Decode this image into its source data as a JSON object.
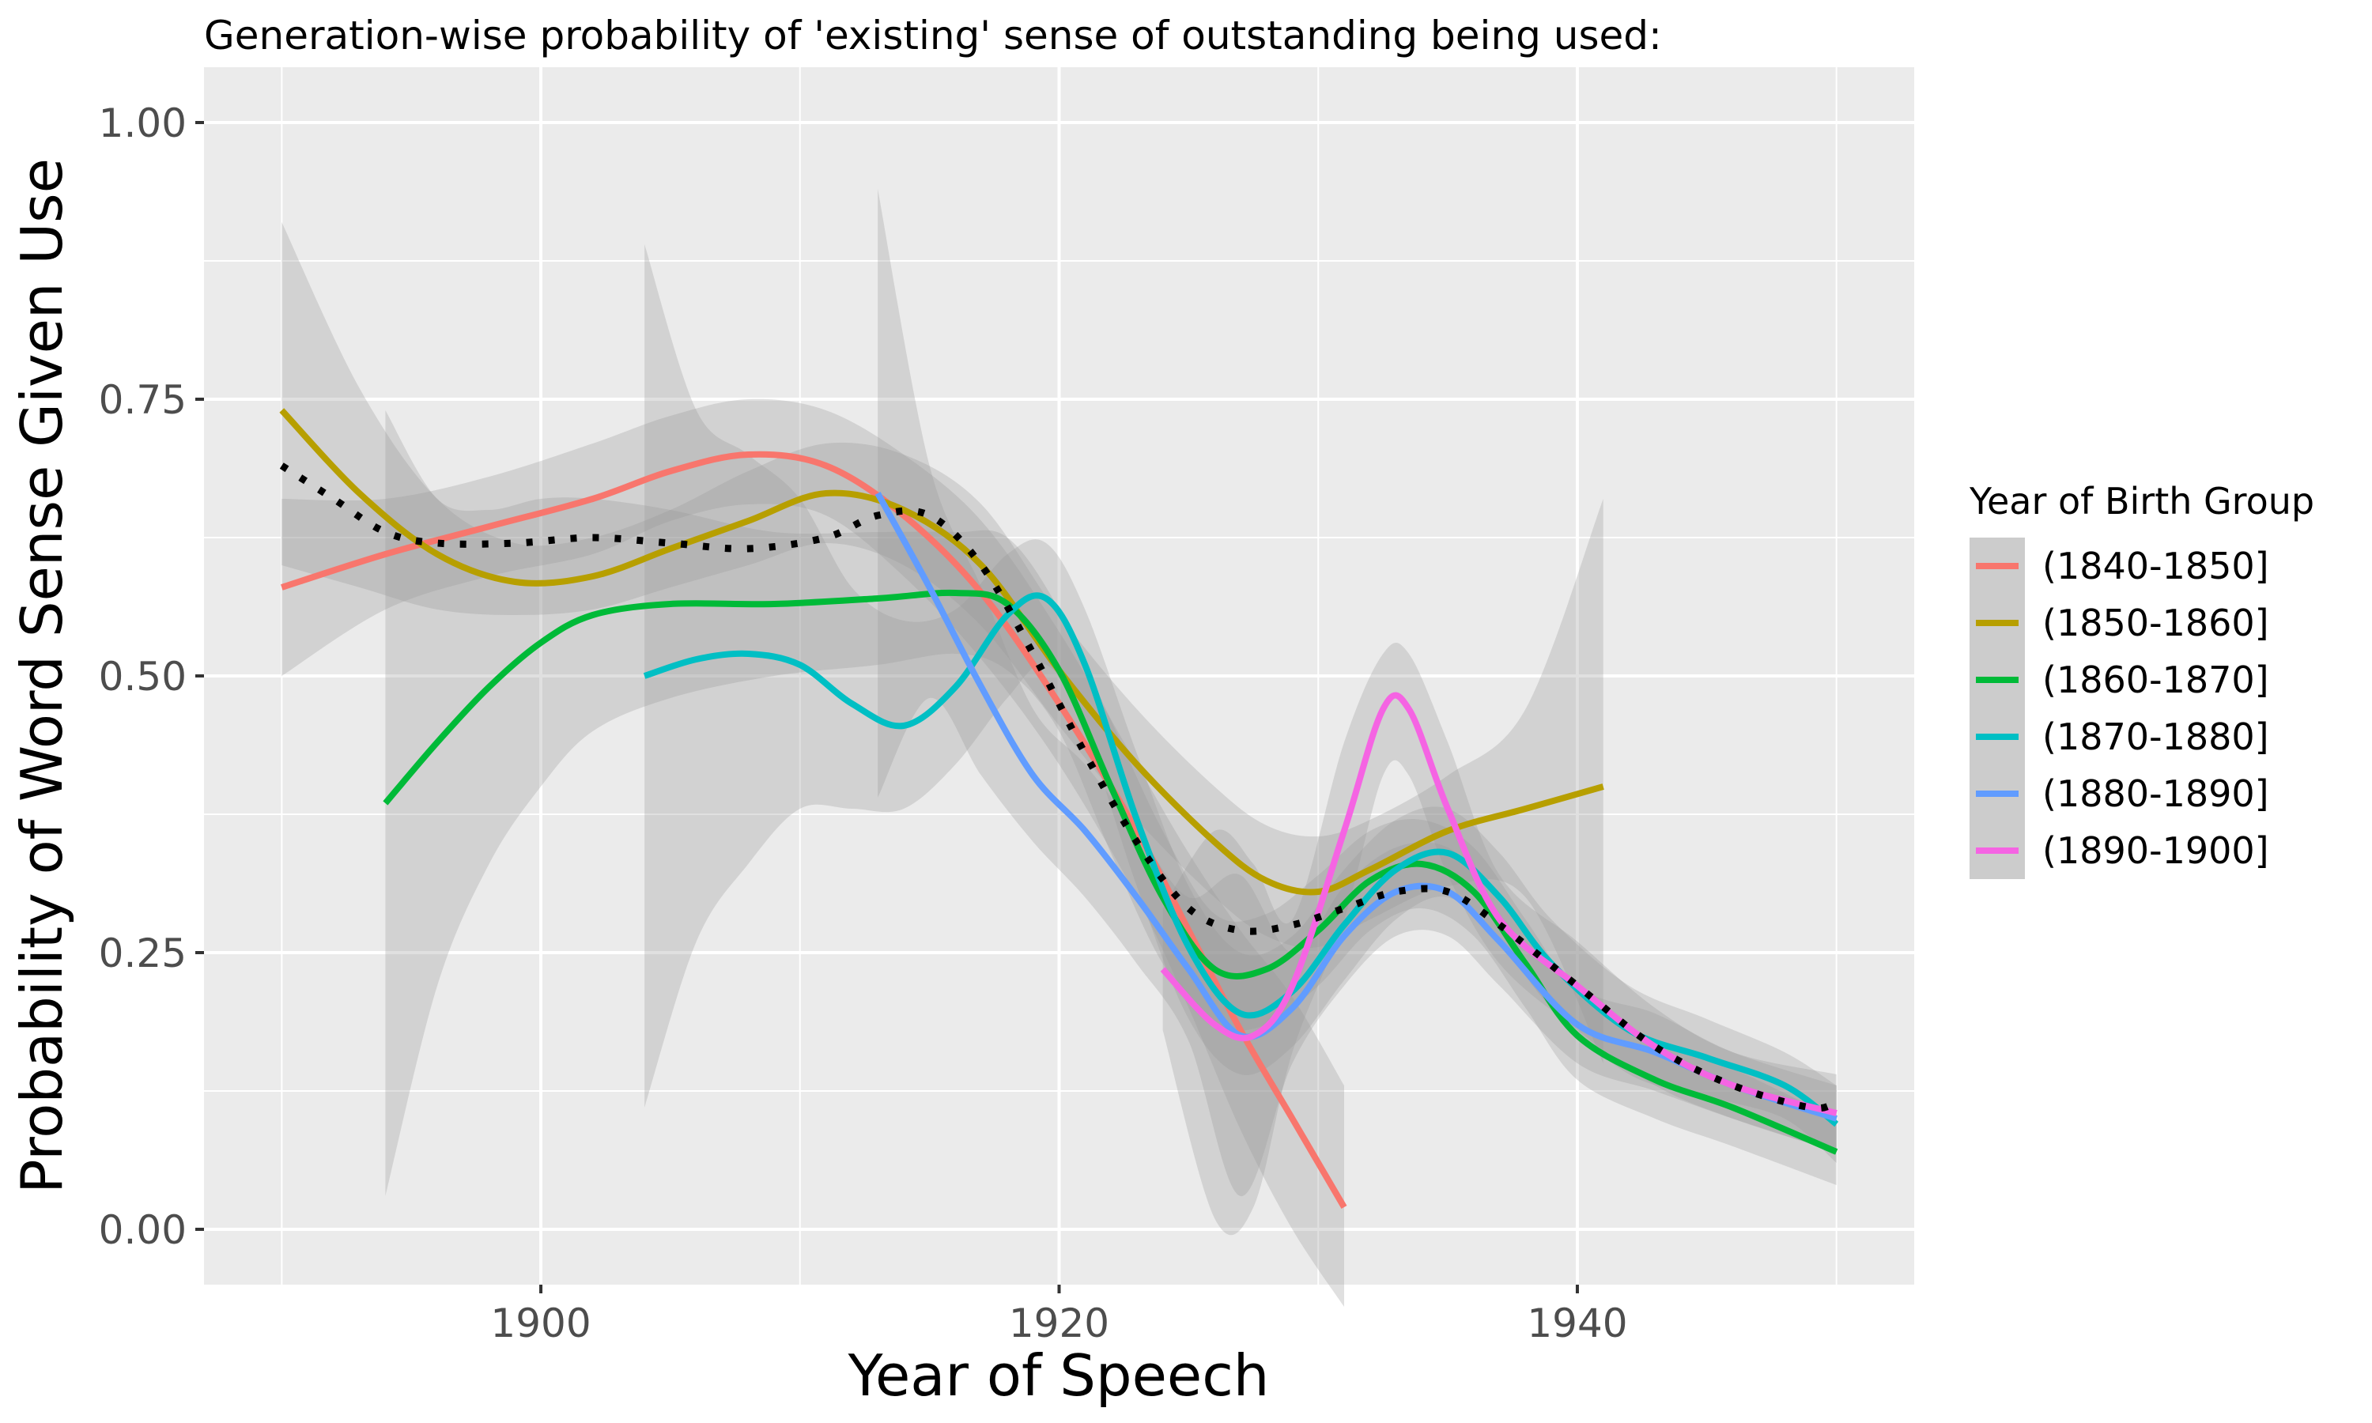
{
  "chart_data": {
    "type": "line",
    "title": "Generation-wise probability of 'existing' sense of outstanding being used:",
    "xlabel": "Year of Speech",
    "ylabel": "Probability of Word Sense Given Use",
    "xlim": [
      1887,
      1953
    ],
    "ylim": [
      -0.05,
      1.05
    ],
    "x_ticks": [
      1900,
      1920,
      1940
    ],
    "x_tick_labels": [
      "1900",
      "1920",
      "1940"
    ],
    "y_ticks": [
      0,
      0.25,
      0.5,
      0.75,
      1
    ],
    "y_tick_labels": [
      "0.00",
      "0.25",
      "0.50",
      "0.75",
      "1.00"
    ],
    "grid": true,
    "legend": {
      "title": "Year of Birth Group",
      "position": "right"
    },
    "colors": {
      "panel_background": "#ebebeb",
      "gridline": "#ffffff",
      "ribbon": "#999999",
      "overall": "#000000"
    },
    "series": [
      {
        "name": "(1840-1850]",
        "color": "#F8766D",
        "points": [
          [
            1890,
            0.58
          ],
          [
            1894,
            0.61
          ],
          [
            1898,
            0.635
          ],
          [
            1902,
            0.66
          ],
          [
            1905,
            0.685
          ],
          [
            1908,
            0.7
          ],
          [
            1911,
            0.69
          ],
          [
            1914,
            0.645
          ],
          [
            1917,
            0.575
          ],
          [
            1920,
            0.475
          ],
          [
            1923,
            0.36
          ],
          [
            1925,
            0.27
          ],
          [
            1927,
            0.18
          ],
          [
            1929,
            0.1
          ],
          [
            1931,
            0.02
          ]
        ],
        "band": [
          [
            1890,
            0.5,
            0.66
          ],
          [
            1894,
            0.56,
            0.66
          ],
          [
            1898,
            0.59,
            0.68
          ],
          [
            1902,
            0.61,
            0.71
          ],
          [
            1905,
            0.64,
            0.735
          ],
          [
            1908,
            0.655,
            0.75
          ],
          [
            1911,
            0.645,
            0.74
          ],
          [
            1914,
            0.59,
            0.7
          ],
          [
            1917,
            0.515,
            0.64
          ],
          [
            1920,
            0.42,
            0.54
          ],
          [
            1923,
            0.3,
            0.42
          ],
          [
            1925,
            0.2,
            0.34
          ],
          [
            1927,
            0.09,
            0.27
          ],
          [
            1929,
            0.0,
            0.21
          ],
          [
            1931,
            -0.07,
            0.13
          ]
        ]
      },
      {
        "name": "(1850-1860]",
        "color": "#B79F00",
        "points": [
          [
            1890,
            0.74
          ],
          [
            1893,
            0.665
          ],
          [
            1896,
            0.61
          ],
          [
            1899,
            0.585
          ],
          [
            1902,
            0.59
          ],
          [
            1905,
            0.615
          ],
          [
            1908,
            0.64
          ],
          [
            1911,
            0.665
          ],
          [
            1914,
            0.65
          ],
          [
            1917,
            0.6
          ],
          [
            1920,
            0.505
          ],
          [
            1923,
            0.42
          ],
          [
            1926,
            0.35
          ],
          [
            1928,
            0.315
          ],
          [
            1930,
            0.305
          ],
          [
            1932,
            0.325
          ],
          [
            1935,
            0.36
          ],
          [
            1938,
            0.38
          ],
          [
            1941,
            0.4
          ]
        ],
        "band": [
          [
            1890,
            0.6,
            0.91
          ],
          [
            1893,
            0.58,
            0.76
          ],
          [
            1896,
            0.56,
            0.66
          ],
          [
            1899,
            0.555,
            0.62
          ],
          [
            1902,
            0.56,
            0.625
          ],
          [
            1905,
            0.58,
            0.65
          ],
          [
            1908,
            0.6,
            0.685
          ],
          [
            1911,
            0.62,
            0.71
          ],
          [
            1914,
            0.6,
            0.7
          ],
          [
            1917,
            0.545,
            0.655
          ],
          [
            1920,
            0.455,
            0.555
          ],
          [
            1923,
            0.37,
            0.47
          ],
          [
            1926,
            0.3,
            0.4
          ],
          [
            1928,
            0.265,
            0.365
          ],
          [
            1930,
            0.255,
            0.355
          ],
          [
            1932,
            0.28,
            0.37
          ],
          [
            1935,
            0.31,
            0.41
          ],
          [
            1938,
            0.3,
            0.47
          ],
          [
            1941,
            0.15,
            0.66
          ]
        ]
      },
      {
        "name": "(1860-1870]",
        "color": "#00BA38",
        "points": [
          [
            1894,
            0.385
          ],
          [
            1896,
            0.44
          ],
          [
            1898,
            0.49
          ],
          [
            1900,
            0.53
          ],
          [
            1902,
            0.555
          ],
          [
            1905,
            0.565
          ],
          [
            1909,
            0.565
          ],
          [
            1913,
            0.57
          ],
          [
            1916,
            0.575
          ],
          [
            1918,
            0.565
          ],
          [
            1920,
            0.505
          ],
          [
            1922,
            0.4
          ],
          [
            1924,
            0.3
          ],
          [
            1926,
            0.235
          ],
          [
            1928,
            0.235
          ],
          [
            1930,
            0.27
          ],
          [
            1932,
            0.315
          ],
          [
            1934,
            0.33
          ],
          [
            1936,
            0.305
          ],
          [
            1938,
            0.24
          ],
          [
            1940,
            0.175
          ],
          [
            1943,
            0.135
          ],
          [
            1946,
            0.11
          ],
          [
            1950,
            0.07
          ]
        ],
        "band": [
          [
            1894,
            0.03,
            0.74
          ],
          [
            1896,
            0.22,
            0.66
          ],
          [
            1898,
            0.33,
            0.65
          ],
          [
            1900,
            0.4,
            0.66
          ],
          [
            1902,
            0.45,
            0.66
          ],
          [
            1905,
            0.48,
            0.65
          ],
          [
            1909,
            0.5,
            0.63
          ],
          [
            1913,
            0.51,
            0.63
          ],
          [
            1916,
            0.52,
            0.63
          ],
          [
            1918,
            0.505,
            0.625
          ],
          [
            1920,
            0.45,
            0.56
          ],
          [
            1922,
            0.34,
            0.46
          ],
          [
            1924,
            0.24,
            0.36
          ],
          [
            1926,
            0.185,
            0.285
          ],
          [
            1928,
            0.185,
            0.285
          ],
          [
            1930,
            0.22,
            0.32
          ],
          [
            1932,
            0.27,
            0.36
          ],
          [
            1934,
            0.29,
            0.37
          ],
          [
            1936,
            0.265,
            0.345
          ],
          [
            1938,
            0.2,
            0.28
          ],
          [
            1940,
            0.135,
            0.215
          ],
          [
            1943,
            0.1,
            0.17
          ],
          [
            1946,
            0.075,
            0.145
          ],
          [
            1950,
            0.04,
            0.1
          ]
        ]
      },
      {
        "name": "(1870-1880]",
        "color": "#00BFC4",
        "points": [
          [
            1904,
            0.5
          ],
          [
            1906,
            0.515
          ],
          [
            1908,
            0.52
          ],
          [
            1910,
            0.51
          ],
          [
            1912,
            0.475
          ],
          [
            1914,
            0.455
          ],
          [
            1916,
            0.49
          ],
          [
            1918,
            0.555
          ],
          [
            1919.5,
            0.57
          ],
          [
            1921,
            0.51
          ],
          [
            1923,
            0.37
          ],
          [
            1925,
            0.255
          ],
          [
            1927,
            0.195
          ],
          [
            1929,
            0.215
          ],
          [
            1931,
            0.275
          ],
          [
            1933,
            0.325
          ],
          [
            1935,
            0.34
          ],
          [
            1937,
            0.3
          ],
          [
            1939,
            0.24
          ],
          [
            1942,
            0.18
          ],
          [
            1945,
            0.155
          ],
          [
            1948,
            0.13
          ],
          [
            1950,
            0.095
          ]
        ],
        "band": [
          [
            1904,
            0.11,
            0.89
          ],
          [
            1906,
            0.26,
            0.74
          ],
          [
            1908,
            0.33,
            0.7
          ],
          [
            1910,
            0.38,
            0.66
          ],
          [
            1912,
            0.38,
            0.58
          ],
          [
            1914,
            0.38,
            0.55
          ],
          [
            1916,
            0.42,
            0.56
          ],
          [
            1918,
            0.48,
            0.61
          ],
          [
            1919.5,
            0.51,
            0.62
          ],
          [
            1921,
            0.45,
            0.56
          ],
          [
            1923,
            0.31,
            0.43
          ],
          [
            1925,
            0.19,
            0.31
          ],
          [
            1927,
            0.14,
            0.25
          ],
          [
            1929,
            0.165,
            0.265
          ],
          [
            1931,
            0.225,
            0.325
          ],
          [
            1933,
            0.28,
            0.37
          ],
          [
            1935,
            0.3,
            0.38
          ],
          [
            1937,
            0.26,
            0.34
          ],
          [
            1939,
            0.2,
            0.28
          ],
          [
            1942,
            0.14,
            0.22
          ],
          [
            1945,
            0.12,
            0.19
          ],
          [
            1948,
            0.1,
            0.16
          ],
          [
            1950,
            0.06,
            0.13
          ]
        ]
      },
      {
        "name": "(1880-1890]",
        "color": "#619CFF",
        "points": [
          [
            1913,
            0.665
          ],
          [
            1915,
            0.58
          ],
          [
            1917,
            0.49
          ],
          [
            1919,
            0.41
          ],
          [
            1921,
            0.36
          ],
          [
            1923,
            0.3
          ],
          [
            1925,
            0.235
          ],
          [
            1927,
            0.175
          ],
          [
            1929,
            0.2
          ],
          [
            1931,
            0.265
          ],
          [
            1933,
            0.305
          ],
          [
            1935,
            0.305
          ],
          [
            1937,
            0.26
          ],
          [
            1940,
            0.185
          ],
          [
            1943,
            0.16
          ],
          [
            1946,
            0.13
          ],
          [
            1950,
            0.1
          ]
        ],
        "band": [
          [
            1913,
            0.39,
            0.94
          ],
          [
            1915,
            0.48,
            0.69
          ],
          [
            1917,
            0.41,
            0.58
          ],
          [
            1919,
            0.35,
            0.47
          ],
          [
            1921,
            0.3,
            0.42
          ],
          [
            1923,
            0.24,
            0.36
          ],
          [
            1925,
            0.17,
            0.3
          ],
          [
            1927,
            0.03,
            0.32
          ],
          [
            1929,
            0.15,
            0.25
          ],
          [
            1931,
            0.22,
            0.31
          ],
          [
            1933,
            0.265,
            0.345
          ],
          [
            1935,
            0.265,
            0.345
          ],
          [
            1937,
            0.22,
            0.3
          ],
          [
            1940,
            0.15,
            0.22
          ],
          [
            1943,
            0.125,
            0.195
          ],
          [
            1946,
            0.1,
            0.16
          ],
          [
            1950,
            0.07,
            0.13
          ]
        ]
      },
      {
        "name": "(1890-1900]",
        "color": "#F564E3",
        "points": [
          [
            1924,
            0.235
          ],
          [
            1926,
            0.185
          ],
          [
            1927.5,
            0.175
          ],
          [
            1929,
            0.22
          ],
          [
            1931,
            0.36
          ],
          [
            1932.5,
            0.47
          ],
          [
            1933.5,
            0.47
          ],
          [
            1935,
            0.38
          ],
          [
            1937,
            0.28
          ],
          [
            1940,
            0.22
          ],
          [
            1943,
            0.165
          ],
          [
            1946,
            0.13
          ],
          [
            1950,
            0.105
          ]
        ],
        "band": [
          [
            1924,
            0.18,
            0.29
          ],
          [
            1926,
            0.01,
            0.36
          ],
          [
            1927.5,
            0.02,
            0.33
          ],
          [
            1929,
            0.16,
            0.28
          ],
          [
            1931,
            0.28,
            0.44
          ],
          [
            1932.5,
            0.41,
            0.52
          ],
          [
            1933.5,
            0.41,
            0.52
          ],
          [
            1935,
            0.32,
            0.44
          ],
          [
            1937,
            0.24,
            0.32
          ],
          [
            1940,
            0.18,
            0.26
          ],
          [
            1943,
            0.13,
            0.2
          ],
          [
            1946,
            0.1,
            0.16
          ],
          [
            1950,
            0.07,
            0.14
          ]
        ]
      },
      {
        "name": "",
        "role": "overall",
        "color": "#000000",
        "dash": "dotted",
        "points": [
          [
            1890,
            0.69
          ],
          [
            1892,
            0.66
          ],
          [
            1894,
            0.63
          ],
          [
            1896,
            0.62
          ],
          [
            1899,
            0.62
          ],
          [
            1902,
            0.625
          ],
          [
            1905,
            0.62
          ],
          [
            1908,
            0.615
          ],
          [
            1911,
            0.625
          ],
          [
            1913,
            0.645
          ],
          [
            1915,
            0.645
          ],
          [
            1917,
            0.6
          ],
          [
            1919,
            0.52
          ],
          [
            1921,
            0.43
          ],
          [
            1923,
            0.35
          ],
          [
            1925,
            0.29
          ],
          [
            1927,
            0.27
          ],
          [
            1929,
            0.275
          ],
          [
            1931,
            0.29
          ],
          [
            1933,
            0.305
          ],
          [
            1935,
            0.305
          ],
          [
            1937,
            0.275
          ],
          [
            1940,
            0.22
          ],
          [
            1943,
            0.165
          ],
          [
            1946,
            0.13
          ],
          [
            1949,
            0.11
          ],
          [
            1950,
            0.115
          ]
        ],
        "band": []
      }
    ]
  }
}
